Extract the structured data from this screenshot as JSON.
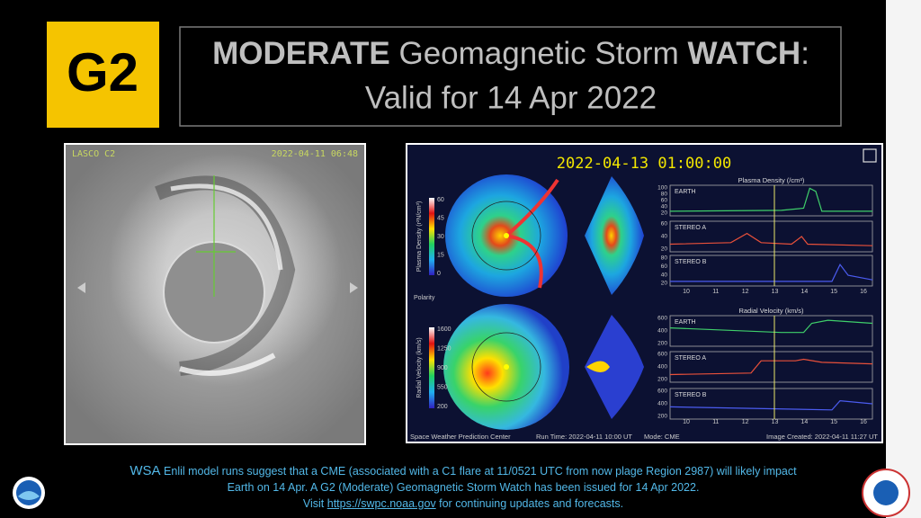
{
  "header": {
    "badge": "G2",
    "title": {
      "strong1": "MODERATE",
      "middle": " Geomagnetic Storm ",
      "strong2": "WATCH",
      "end": ":"
    },
    "subtitle": "Valid for 14 Apr 2022"
  },
  "lasco": {
    "label": "LASCO C2",
    "timestamp": "2022-04-11 06:48"
  },
  "enlil": {
    "timestamp": "2022-04-13 01:00:00",
    "density_colorbar": {
      "label": "Plasma Density (r²N/cm³)",
      "ticks": [
        "60",
        "45",
        "30",
        "15",
        "0"
      ]
    },
    "polarity": "Polarity",
    "velocity_colorbar": {
      "label": "Radial Velocity (km/s)",
      "ticks": [
        "1600",
        "1250",
        "900",
        "550",
        "200"
      ]
    },
    "density_plot": {
      "title": "Plasma Density (/cm³)",
      "panels": [
        {
          "name": "EARTH",
          "yticks": [
            "100",
            "80",
            "60",
            "40",
            "20"
          ]
        },
        {
          "name": "STEREO A",
          "yticks": [
            "60",
            "40",
            "20"
          ]
        },
        {
          "name": "STEREO B",
          "yticks": [
            "80",
            "60",
            "40",
            "20"
          ]
        }
      ],
      "xticks": [
        "10",
        "11",
        "12",
        "13",
        "14",
        "15",
        "16"
      ]
    },
    "velocity_plot": {
      "title": "Radial Velocity (km/s)",
      "panels": [
        {
          "name": "EARTH",
          "yticks": [
            "600",
            "400",
            "200"
          ]
        },
        {
          "name": "STEREO A",
          "yticks": [
            "600",
            "400",
            "200"
          ]
        },
        {
          "name": "STEREO B",
          "yticks": [
            "600",
            "400",
            "200"
          ]
        }
      ],
      "xticks": [
        "10",
        "11",
        "12",
        "13",
        "14",
        "15",
        "16"
      ]
    },
    "footer": {
      "center": "Space Weather Prediction Center",
      "run_time": "Run Time: 2022-04-11 10:00 UT",
      "mode": "Mode: CME",
      "created": "Image Created: 2022-04-11 11:27 UT"
    }
  },
  "footer": {
    "lead": "WSA",
    "line1": " Enlil model runs suggest that a CME (associated with a C1 flare at 11/0521 UTC from now plage Region 2987) will likely impact",
    "line2": "Earth on 14 Apr. A G2 (Moderate)  Geomagnetic Storm Watch has been issued for 14 Apr 2022.",
    "visit": "Visit ",
    "link": "https://swpc.noaa.gov",
    "after_link": " for continuing updates and forecasts."
  }
}
